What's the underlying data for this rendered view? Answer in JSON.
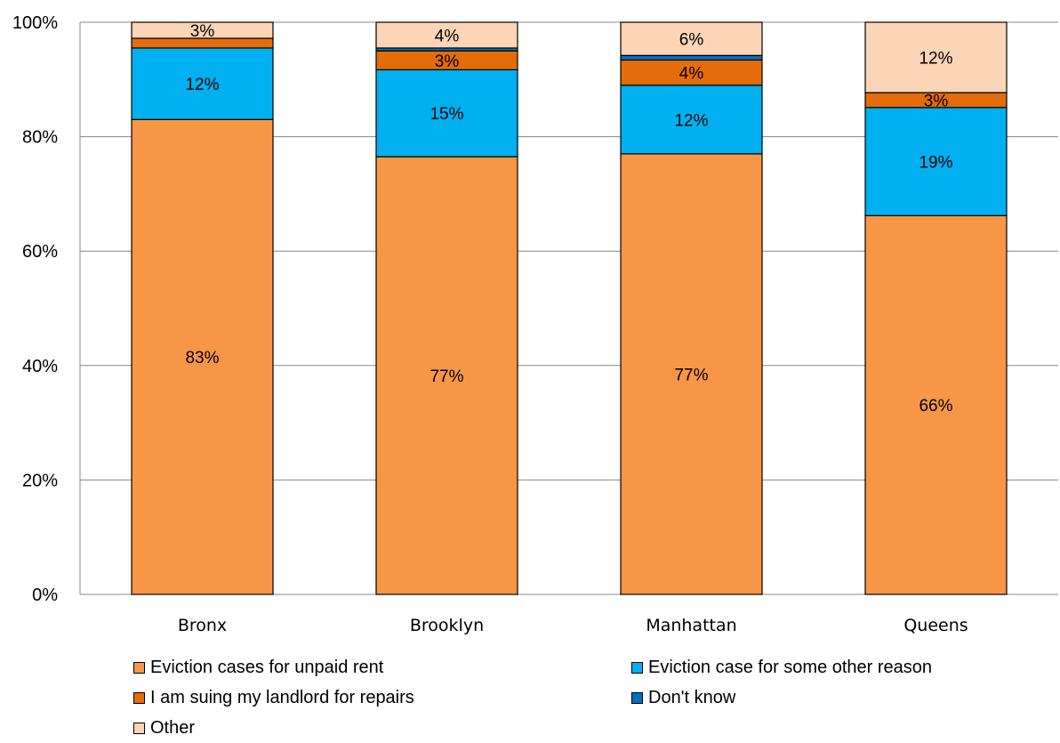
{
  "chart_data": {
    "type": "bar",
    "stacked": true,
    "categories": [
      "Bronx",
      "Brooklyn",
      "Manhattan",
      "Queens"
    ],
    "series": [
      {
        "name": "Eviction cases for unpaid rent",
        "color": "#F79646",
        "values": [
          83,
          76.5,
          77,
          66.2
        ],
        "labels": [
          "83%",
          "77%",
          "77%",
          "66%"
        ]
      },
      {
        "name": "Eviction case for some other reason",
        "color": "#00B0F0",
        "values": [
          12.5,
          15.2,
          12,
          18.9
        ],
        "labels": [
          "12%",
          "15%",
          "12%",
          "19%"
        ]
      },
      {
        "name": "I am suing my landlord for repairs",
        "color": "#E46C0A",
        "values": [
          1.7,
          3.3,
          4.4,
          2.6
        ],
        "labels": [
          "",
          "3%",
          "4%",
          "3%"
        ]
      },
      {
        "name": "Don't know",
        "color": "#0070C0",
        "values": [
          0,
          0.5,
          0.8,
          0
        ],
        "labels": [
          "",
          "",
          "",
          ""
        ]
      },
      {
        "name": "Other",
        "color": "#FBD5B5",
        "values": [
          2.8,
          4.5,
          5.8,
          12.3
        ],
        "labels": [
          "3%",
          "4%",
          "6%",
          "12%"
        ]
      }
    ],
    "ylim": [
      0,
      100
    ],
    "yticks": [
      "0%",
      "20%",
      "40%",
      "60%",
      "80%",
      "100%"
    ],
    "grid": true,
    "legend_position": "bottom"
  }
}
